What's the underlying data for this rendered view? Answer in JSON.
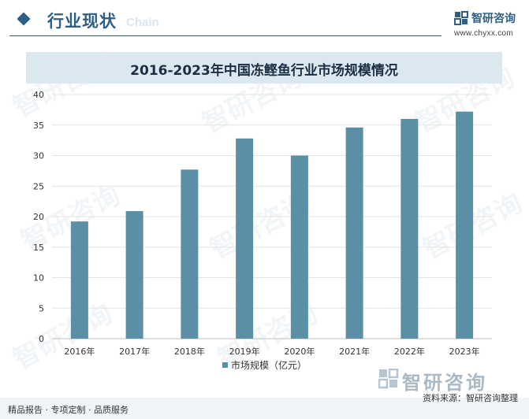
{
  "header": {
    "title": "行业现状",
    "title_en": "Chain",
    "brand_name": "智研咨询",
    "brand_url": "www.chyxx.com"
  },
  "watermark_text": "智研咨询",
  "chart_data": {
    "type": "bar",
    "title": "2016-2023年中国冻鲣鱼行业市场规模情况",
    "categories": [
      "2016年",
      "2017年",
      "2018年",
      "2019年",
      "2020年",
      "2021年",
      "2022年",
      "2023年"
    ],
    "series": [
      {
        "name": "市场规模（亿元）",
        "values": [
          19.2,
          20.9,
          27.7,
          32.8,
          30.0,
          34.6,
          36.0,
          37.2
        ]
      }
    ],
    "ylim": [
      0,
      40
    ],
    "yticks": [
      0,
      5,
      10,
      15,
      20,
      25,
      30,
      35,
      40
    ],
    "xlabel": "",
    "ylabel": "",
    "grid": true,
    "legend_position": "bottom",
    "bar_color": "#5b8fa5"
  },
  "footer": {
    "left": "精品报告 · 专项定制 · 品质服务",
    "source": "资料来源：智研咨询整理",
    "brand": "智研咨询"
  }
}
